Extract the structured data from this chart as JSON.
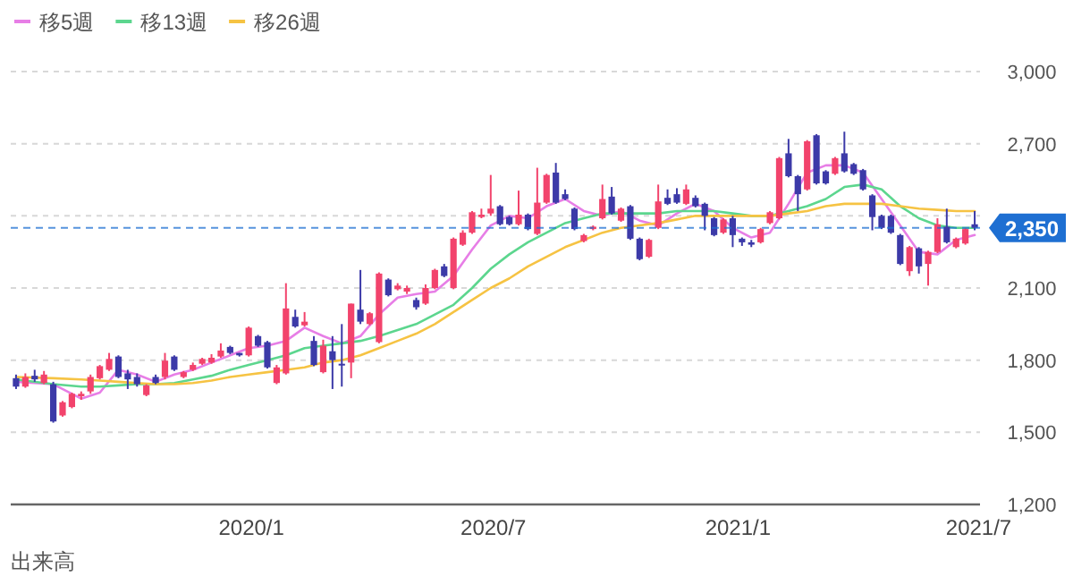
{
  "chart_data": {
    "type": "candlestick",
    "x": [
      "2019-07-08",
      "2019-07-15",
      "2019-07-22",
      "2019-07-29",
      "2019-08-05",
      "2019-08-12",
      "2019-08-19",
      "2019-08-26",
      "2019-09-02",
      "2019-09-09",
      "2019-09-16",
      "2019-09-23",
      "2019-09-30",
      "2019-10-07",
      "2019-10-14",
      "2019-10-21",
      "2019-10-28",
      "2019-11-04",
      "2019-11-11",
      "2019-11-18",
      "2019-11-25",
      "2019-12-02",
      "2019-12-09",
      "2019-12-16",
      "2019-12-23",
      "2019-12-30",
      "2020-01-06",
      "2020-01-13",
      "2020-01-20",
      "2020-01-27",
      "2020-02-03",
      "2020-02-10",
      "2020-02-17",
      "2020-02-24",
      "2020-03-02",
      "2020-03-09",
      "2020-03-16",
      "2020-03-23",
      "2020-03-30",
      "2020-04-06",
      "2020-04-13",
      "2020-04-20",
      "2020-04-27",
      "2020-05-04",
      "2020-05-11",
      "2020-05-18",
      "2020-05-25",
      "2020-06-01",
      "2020-06-08",
      "2020-06-15",
      "2020-06-22",
      "2020-06-29",
      "2020-07-06",
      "2020-07-13",
      "2020-07-20",
      "2020-07-27",
      "2020-08-03",
      "2020-08-10",
      "2020-08-17",
      "2020-08-24",
      "2020-08-31",
      "2020-09-07",
      "2020-09-14",
      "2020-09-21",
      "2020-09-28",
      "2020-10-05",
      "2020-10-12",
      "2020-10-19",
      "2020-10-26",
      "2020-11-02",
      "2020-11-09",
      "2020-11-16",
      "2020-11-23",
      "2020-11-30",
      "2020-12-07",
      "2020-12-14",
      "2020-12-21",
      "2020-12-28",
      "2021-01-04",
      "2021-01-11",
      "2021-01-18",
      "2021-01-25",
      "2021-02-01",
      "2021-02-08",
      "2021-02-15",
      "2021-02-22",
      "2021-03-01",
      "2021-03-08",
      "2021-03-15",
      "2021-03-22",
      "2021-03-29",
      "2021-04-05",
      "2021-04-12",
      "2021-04-19",
      "2021-04-26",
      "2021-05-03",
      "2021-05-10",
      "2021-05-17",
      "2021-05-24",
      "2021-05-31",
      "2021-06-07",
      "2021-06-14",
      "2021-06-21",
      "2021-06-28"
    ],
    "ohlc": [
      [
        1725,
        1740,
        1680,
        1690
      ],
      [
        1690,
        1745,
        1685,
        1730
      ],
      [
        1735,
        1760,
        1710,
        1720
      ],
      [
        1705,
        1755,
        1700,
        1740
      ],
      [
        1700,
        1710,
        1540,
        1545
      ],
      [
        1570,
        1630,
        1565,
        1625
      ],
      [
        1605,
        1665,
        1600,
        1660
      ],
      [
        1650,
        1670,
        1635,
        1660
      ],
      [
        1670,
        1740,
        1660,
        1730
      ],
      [
        1725,
        1780,
        1720,
        1775
      ],
      [
        1760,
        1830,
        1755,
        1805
      ],
      [
        1815,
        1820,
        1725,
        1730
      ],
      [
        1745,
        1760,
        1680,
        1720
      ],
      [
        1730,
        1745,
        1690,
        1700
      ],
      [
        1655,
        1700,
        1650,
        1695
      ],
      [
        1730,
        1740,
        1700,
        1705
      ],
      [
        1730,
        1830,
        1720,
        1798
      ],
      [
        1815,
        1820,
        1755,
        1760
      ],
      [
        1730,
        1755,
        1725,
        1750
      ],
      [
        1760,
        1790,
        1755,
        1780
      ],
      [
        1785,
        1810,
        1780,
        1805
      ],
      [
        1790,
        1825,
        1785,
        1810
      ],
      [
        1815,
        1870,
        1810,
        1840
      ],
      [
        1855,
        1860,
        1825,
        1830
      ],
      [
        1830,
        1830,
        1815,
        1820
      ],
      [
        1820,
        1940,
        1815,
        1935
      ],
      [
        1900,
        1905,
        1855,
        1860
      ],
      [
        1875,
        1880,
        1765,
        1770
      ],
      [
        1705,
        1780,
        1700,
        1770
      ],
      [
        1745,
        2120,
        1740,
        2015
      ],
      [
        1980,
        2010,
        1935,
        1940
      ],
      [
        1945,
        2000,
        1940,
        1960
      ],
      [
        1880,
        1900,
        1775,
        1780
      ],
      [
        1750,
        1885,
        1745,
        1860
      ],
      [
        1837,
        1900,
        1680,
        1800
      ],
      [
        1785,
        1950,
        1690,
        1780
      ],
      [
        1790,
        2035,
        1725,
        2035
      ],
      [
        2010,
        2175,
        1950,
        1960
      ],
      [
        1950,
        2000,
        1945,
        1995
      ],
      [
        1875,
        2165,
        1870,
        2160
      ],
      [
        2135,
        2140,
        2065,
        2070
      ],
      [
        2095,
        2120,
        2090,
        2110
      ],
      [
        2085,
        2110,
        2075,
        2100
      ],
      [
        2050,
        2060,
        2010,
        2020
      ],
      [
        2035,
        2115,
        2030,
        2100
      ],
      [
        2100,
        2180,
        2095,
        2175
      ],
      [
        2190,
        2200,
        2145,
        2150
      ],
      [
        2100,
        2310,
        2095,
        2305
      ],
      [
        2280,
        2340,
        2275,
        2330
      ],
      [
        2330,
        2420,
        2325,
        2415
      ],
      [
        2395,
        2430,
        2390,
        2405
      ],
      [
        2410,
        2570,
        2400,
        2430
      ],
      [
        2440,
        2445,
        2360,
        2365
      ],
      [
        2395,
        2400,
        2360,
        2365
      ],
      [
        2365,
        2505,
        2360,
        2405
      ],
      [
        2405,
        2410,
        2340,
        2345
      ],
      [
        2325,
        2600,
        2320,
        2455
      ],
      [
        2455,
        2575,
        2450,
        2570
      ],
      [
        2580,
        2620,
        2450,
        2455
      ],
      [
        2490,
        2510,
        2465,
        2470
      ],
      [
        2430,
        2435,
        2340,
        2345
      ],
      [
        2295,
        2325,
        2290,
        2320
      ],
      [
        2345,
        2360,
        2340,
        2355
      ],
      [
        2390,
        2530,
        2385,
        2470
      ],
      [
        2480,
        2520,
        2405,
        2410
      ],
      [
        2380,
        2435,
        2375,
        2430
      ],
      [
        2440,
        2445,
        2300,
        2305
      ],
      [
        2305,
        2310,
        2215,
        2220
      ],
      [
        2230,
        2305,
        2225,
        2300
      ],
      [
        2350,
        2530,
        2345,
        2460
      ],
      [
        2475,
        2510,
        2445,
        2450
      ],
      [
        2490,
        2515,
        2450,
        2455
      ],
      [
        2450,
        2530,
        2445,
        2510
      ],
      [
        2475,
        2485,
        2435,
        2440
      ],
      [
        2450,
        2455,
        2340,
        2400
      ],
      [
        2390,
        2395,
        2315,
        2320
      ],
      [
        2330,
        2390,
        2325,
        2385
      ],
      [
        2390,
        2400,
        2270,
        2320
      ],
      [
        2305,
        2310,
        2275,
        2290
      ],
      [
        2290,
        2300,
        2270,
        2280
      ],
      [
        2290,
        2350,
        2285,
        2345
      ],
      [
        2370,
        2420,
        2365,
        2415
      ],
      [
        2390,
        2645,
        2385,
        2640
      ],
      [
        2660,
        2720,
        2560,
        2565
      ],
      [
        2565,
        2570,
        2420,
        2490
      ],
      [
        2510,
        2715,
        2505,
        2710
      ],
      [
        2735,
        2740,
        2530,
        2535
      ],
      [
        2585,
        2590,
        2530,
        2535
      ],
      [
        2575,
        2645,
        2570,
        2640
      ],
      [
        2660,
        2750,
        2580,
        2585
      ],
      [
        2615,
        2620,
        2570,
        2575
      ],
      [
        2590,
        2595,
        2505,
        2510
      ],
      [
        2485,
        2490,
        2340,
        2395
      ],
      [
        2400,
        2405,
        2345,
        2350
      ],
      [
        2400,
        2405,
        2325,
        2330
      ],
      [
        2320,
        2325,
        2195,
        2200
      ],
      [
        2170,
        2275,
        2150,
        2270
      ],
      [
        2265,
        2270,
        2160,
        2190
      ],
      [
        2200,
        2255,
        2110,
        2250
      ],
      [
        2250,
        2390,
        2245,
        2365
      ],
      [
        2355,
        2430,
        2285,
        2290
      ],
      [
        2270,
        2310,
        2265,
        2305
      ],
      [
        2285,
        2350,
        2280,
        2345
      ],
      [
        2365,
        2420,
        2340,
        2350
      ]
    ],
    "series": [
      {
        "type": "line",
        "name": "移5週",
        "color": "#e77ee6",
        "x": [
          "2019-07-08",
          "2019-08-05",
          "2019-08-26",
          "2019-09-09",
          "2019-09-23",
          "2019-10-07",
          "2019-10-21",
          "2019-11-04",
          "2019-11-18",
          "2019-12-02",
          "2019-12-16",
          "2019-12-30",
          "2020-01-13",
          "2020-01-27",
          "2020-02-10",
          "2020-02-24",
          "2020-03-09",
          "2020-03-23",
          "2020-04-06",
          "2020-04-20",
          "2020-05-04",
          "2020-05-18",
          "2020-06-01",
          "2020-06-15",
          "2020-06-29",
          "2020-07-13",
          "2020-07-27",
          "2020-08-10",
          "2020-08-24",
          "2020-09-07",
          "2020-09-21",
          "2020-10-05",
          "2020-10-19",
          "2020-11-02",
          "2020-11-16",
          "2020-11-30",
          "2020-12-14",
          "2020-12-28",
          "2021-01-11",
          "2021-01-25",
          "2021-02-08",
          "2021-02-22",
          "2021-03-08",
          "2021-03-22",
          "2021-04-05",
          "2021-04-19",
          "2021-05-03",
          "2021-05-17",
          "2021-05-31",
          "2021-06-14",
          "2021-06-28"
        ],
        "values": [
          1710,
          1700,
          1640,
          1665,
          1760,
          1740,
          1710,
          1740,
          1760,
          1790,
          1820,
          1850,
          1860,
          1880,
          1935,
          1900,
          1870,
          1900,
          1990,
          2060,
          2075,
          2085,
          2150,
          2260,
          2360,
          2400,
          2390,
          2440,
          2470,
          2420,
          2400,
          2420,
          2380,
          2360,
          2410,
          2450,
          2420,
          2350,
          2310,
          2330,
          2450,
          2580,
          2610,
          2610,
          2580,
          2470,
          2360,
          2250,
          2240,
          2300,
          2320
        ]
      },
      {
        "type": "line",
        "name": "移13週",
        "color": "#5cd68e",
        "x": [
          "2019-07-08",
          "2019-08-05",
          "2019-08-26",
          "2019-09-09",
          "2019-09-23",
          "2019-10-07",
          "2019-10-21",
          "2019-11-04",
          "2019-11-18",
          "2019-12-02",
          "2019-12-16",
          "2019-12-30",
          "2020-01-13",
          "2020-01-27",
          "2020-02-10",
          "2020-02-24",
          "2020-03-09",
          "2020-03-23",
          "2020-04-06",
          "2020-04-20",
          "2020-05-04",
          "2020-05-18",
          "2020-06-01",
          "2020-06-15",
          "2020-06-29",
          "2020-07-13",
          "2020-07-27",
          "2020-08-10",
          "2020-08-24",
          "2020-09-07",
          "2020-09-21",
          "2020-10-05",
          "2020-10-19",
          "2020-11-02",
          "2020-11-16",
          "2020-11-30",
          "2020-12-14",
          "2020-12-28",
          "2021-01-11",
          "2021-01-25",
          "2021-02-08",
          "2021-02-22",
          "2021-03-08",
          "2021-03-22",
          "2021-04-05",
          "2021-04-19",
          "2021-05-03",
          "2021-05-17",
          "2021-05-31",
          "2021-06-14",
          "2021-06-28"
        ],
        "values": [
          1720,
          1700,
          1690,
          1690,
          1695,
          1700,
          1700,
          1705,
          1720,
          1735,
          1760,
          1780,
          1800,
          1820,
          1850,
          1860,
          1870,
          1880,
          1900,
          1925,
          1950,
          1990,
          2030,
          2100,
          2180,
          2240,
          2290,
          2330,
          2370,
          2390,
          2410,
          2410,
          2410,
          2410,
          2420,
          2420,
          2420,
          2410,
          2400,
          2400,
          2420,
          2440,
          2470,
          2520,
          2530,
          2510,
          2440,
          2390,
          2360,
          2350,
          2350
        ]
      },
      {
        "type": "line",
        "name": "移26週",
        "color": "#f6c343",
        "x": [
          "2019-07-08",
          "2019-08-05",
          "2019-08-26",
          "2019-09-09",
          "2019-09-23",
          "2019-10-07",
          "2019-10-21",
          "2019-11-04",
          "2019-11-18",
          "2019-12-02",
          "2019-12-16",
          "2019-12-30",
          "2020-01-13",
          "2020-01-27",
          "2020-02-10",
          "2020-02-24",
          "2020-03-09",
          "2020-03-23",
          "2020-04-06",
          "2020-04-20",
          "2020-05-04",
          "2020-05-18",
          "2020-06-01",
          "2020-06-15",
          "2020-06-29",
          "2020-07-13",
          "2020-07-27",
          "2020-08-10",
          "2020-08-24",
          "2020-09-07",
          "2020-09-21",
          "2020-10-05",
          "2020-10-19",
          "2020-11-02",
          "2020-11-16",
          "2020-11-30",
          "2020-12-14",
          "2020-12-28",
          "2021-01-11",
          "2021-01-25",
          "2021-02-08",
          "2021-02-22",
          "2021-03-08",
          "2021-03-22",
          "2021-04-05",
          "2021-04-19",
          "2021-05-03",
          "2021-05-17",
          "2021-05-31",
          "2021-06-14",
          "2021-06-28"
        ],
        "values": [
          1730,
          1725,
          1720,
          1715,
          1710,
          1705,
          1700,
          1700,
          1705,
          1715,
          1730,
          1740,
          1750,
          1760,
          1770,
          1790,
          1800,
          1820,
          1850,
          1880,
          1910,
          1950,
          2000,
          2050,
          2100,
          2140,
          2190,
          2230,
          2270,
          2300,
          2330,
          2350,
          2360,
          2370,
          2385,
          2400,
          2400,
          2400,
          2400,
          2400,
          2410,
          2420,
          2440,
          2450,
          2450,
          2450,
          2440,
          2430,
          2425,
          2420,
          2420
        ]
      }
    ],
    "xlim": [
      "2019-07-04",
      "2021-07-02"
    ],
    "xticks": [
      {
        "value": "2020-01-01",
        "label": "2020/1"
      },
      {
        "value": "2020-07-01",
        "label": "2020/7"
      },
      {
        "value": "2021-01-01",
        "label": "2021/1"
      },
      {
        "value": "2021-07-01",
        "label": "2021/7"
      }
    ],
    "ylim": [
      1200,
      3000
    ],
    "yticks": [
      {
        "value": 1200,
        "label": "1,200"
      },
      {
        "value": 1500,
        "label": "1,500"
      },
      {
        "value": 1800,
        "label": "1,800"
      },
      {
        "value": 2100,
        "label": "2,100"
      },
      {
        "value": 2400,
        "label": null
      },
      {
        "value": 2700,
        "label": "2,700"
      },
      {
        "value": 3000,
        "label": "3,000"
      }
    ],
    "ref_lines": [
      {
        "axis": "y",
        "value": 2350,
        "label": "2,350",
        "color": "#1e6fd2",
        "line_style": "dashed"
      }
    ],
    "grid": "y",
    "legend": "top left",
    "annotations": [
      "出来高"
    ]
  }
}
